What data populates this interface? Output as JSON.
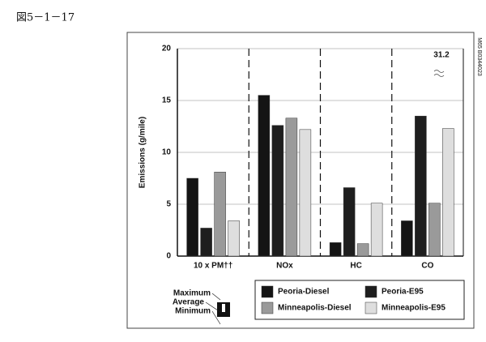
{
  "figure_label": "図5－1－17",
  "side_code": "M65 B0344023",
  "chart_data": {
    "type": "bar",
    "ylabel": "Emissions (g/mile)",
    "categories": [
      "10 x PM††",
      "NOx",
      "HC",
      "CO"
    ],
    "series": [
      {
        "name": "Peoria-Diesel",
        "color": "#141414",
        "values": [
          7.5,
          15.5,
          1.3,
          3.4
        ]
      },
      {
        "name": "Peoria-E95",
        "color": "#1e1e1e",
        "values": [
          2.7,
          12.6,
          6.6,
          13.5
        ]
      },
      {
        "name": "Minneapolis-Diesel",
        "color": "#9a9a9a",
        "values": [
          8.1,
          13.3,
          1.2,
          5.1
        ]
      },
      {
        "name": "Minneapolis-E95",
        "color": "#dedede",
        "values": [
          3.4,
          12.2,
          5.1,
          12.3
        ]
      }
    ],
    "ylim": [
      0,
      20
    ],
    "yticks": [
      0,
      5,
      10,
      15,
      20
    ],
    "grid": true,
    "annotation": "31.2",
    "range_legend": [
      "Maximum",
      "Average",
      "Minimum"
    ]
  }
}
